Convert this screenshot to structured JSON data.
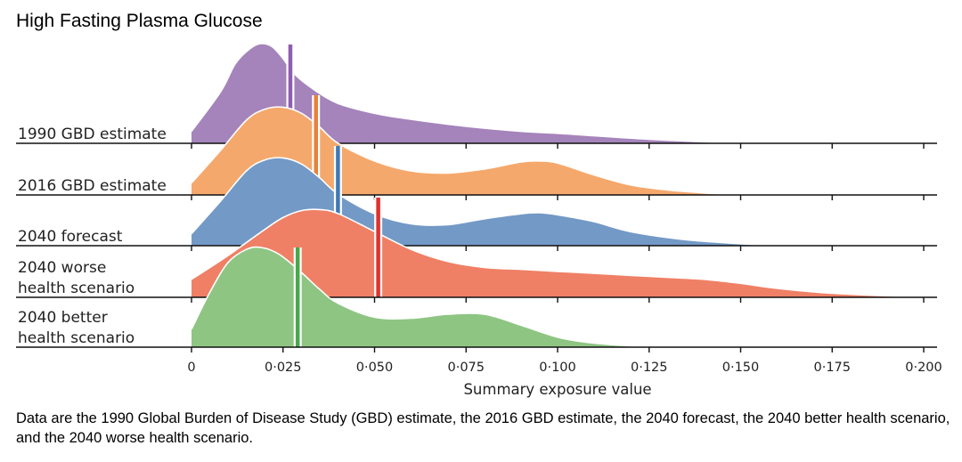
{
  "title": "High Fasting Plasma Glucose",
  "caption": "Data are the 1990 Global Burden of Disease Study (GBD) estimate, the 2016 GBD estimate, the 2040 forecast, the 2040 better health scenario, and the 2040 worse health scenario.",
  "chart_data": {
    "type": "area",
    "title": "High Fasting Plasma Glucose",
    "xlabel": "Summary exposure value",
    "xlim": [
      0,
      0.2
    ],
    "x_ticks": [
      0,
      0.025,
      0.05,
      0.075,
      0.1,
      0.125,
      0.15,
      0.175,
      0.2
    ],
    "x_tick_labels": [
      "0",
      "0·025",
      "0·050",
      "0·075",
      "0·100",
      "0·125",
      "0·150",
      "0·175",
      "0·200"
    ],
    "grid": false,
    "series": [
      {
        "name": "1990 GBD estimate",
        "color": "#a583bb",
        "marker_color": "#8e5fae",
        "estimate": 0.027,
        "label_lines": [
          "1990 GBD estimate"
        ],
        "x": [
          0,
          0.008,
          0.012,
          0.016,
          0.019,
          0.022,
          0.025,
          0.028,
          0.033,
          0.04,
          0.05,
          0.06,
          0.075,
          0.09,
          0.1,
          0.11,
          0.125,
          0.14,
          0.15
        ],
        "density": [
          0.12,
          0.52,
          0.8,
          0.95,
          1.0,
          0.97,
          0.85,
          0.7,
          0.55,
          0.4,
          0.3,
          0.24,
          0.17,
          0.12,
          0.1,
          0.075,
          0.04,
          0.015,
          0.0
        ]
      },
      {
        "name": "2016 GBD estimate",
        "color": "#f5a86c",
        "marker_color": "#e8813a",
        "estimate": 0.034,
        "label_lines": [
          "2016 GBD estimate"
        ],
        "x": [
          0,
          0.008,
          0.015,
          0.02,
          0.025,
          0.03,
          0.035,
          0.04,
          0.05,
          0.06,
          0.07,
          0.08,
          0.09,
          0.095,
          0.1,
          0.11,
          0.12,
          0.13,
          0.14,
          0.15
        ],
        "density": [
          0.12,
          0.45,
          0.75,
          0.86,
          0.88,
          0.82,
          0.68,
          0.52,
          0.34,
          0.24,
          0.22,
          0.26,
          0.33,
          0.34,
          0.32,
          0.2,
          0.1,
          0.05,
          0.02,
          0.0
        ]
      },
      {
        "name": "2040 forecast",
        "color": "#7399c6",
        "marker_color": "#3f78b5",
        "estimate": 0.04,
        "label_lines": [
          "2040 forecast"
        ],
        "x": [
          0,
          0.008,
          0.015,
          0.02,
          0.025,
          0.03,
          0.035,
          0.04,
          0.05,
          0.06,
          0.07,
          0.08,
          0.09,
          0.095,
          0.1,
          0.11,
          0.12,
          0.135,
          0.15,
          0.16
        ],
        "density": [
          0.12,
          0.45,
          0.75,
          0.86,
          0.88,
          0.82,
          0.68,
          0.52,
          0.32,
          0.22,
          0.21,
          0.27,
          0.32,
          0.33,
          0.31,
          0.24,
          0.14,
          0.06,
          0.02,
          0.0
        ]
      },
      {
        "name": "2040 worse health scenario",
        "color": "#ef8065",
        "marker_color": "#e0312e",
        "estimate": 0.051,
        "label_lines": [
          "2040 worse",
          "health scenario"
        ],
        "x": [
          0,
          0.01,
          0.02,
          0.025,
          0.03,
          0.035,
          0.04,
          0.05,
          0.06,
          0.07,
          0.08,
          0.09,
          0.1,
          0.11,
          0.12,
          0.13,
          0.14,
          0.15,
          0.16,
          0.175,
          0.2
        ],
        "density": [
          0.18,
          0.42,
          0.68,
          0.8,
          0.87,
          0.88,
          0.84,
          0.66,
          0.48,
          0.36,
          0.3,
          0.28,
          0.26,
          0.24,
          0.22,
          0.2,
          0.18,
          0.14,
          0.09,
          0.04,
          0.0
        ]
      },
      {
        "name": "2040 better health scenario",
        "color": "#8ec583",
        "marker_color": "#49a84a",
        "estimate": 0.029,
        "label_lines": [
          "2040 better",
          "health scenario"
        ],
        "x": [
          0,
          0.005,
          0.01,
          0.015,
          0.019,
          0.024,
          0.03,
          0.035,
          0.04,
          0.05,
          0.06,
          0.07,
          0.08,
          0.09,
          0.1,
          0.11,
          0.125
        ],
        "density": [
          0.18,
          0.55,
          0.85,
          0.98,
          1.0,
          0.93,
          0.75,
          0.58,
          0.44,
          0.3,
          0.29,
          0.33,
          0.33,
          0.22,
          0.1,
          0.04,
          0.0
        ]
      }
    ]
  }
}
